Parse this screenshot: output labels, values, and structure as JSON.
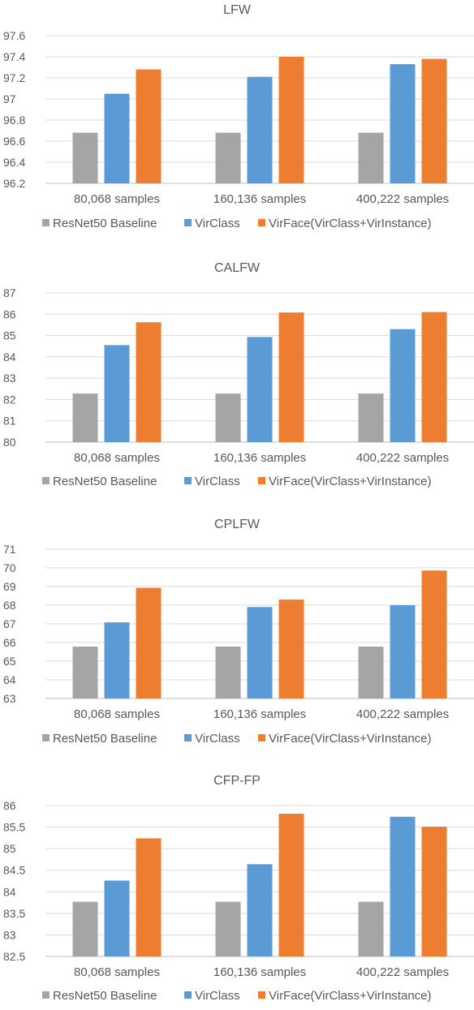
{
  "colors": {
    "baseline": "#a5a5a5",
    "virclass": "#5b9bd5",
    "virface": "#ed7d31",
    "grid": "#d9d9d9",
    "axis": "#bfbfbf",
    "text": "#595959"
  },
  "legend_labels": [
    "ResNet50 Baseline",
    "VirClass",
    "VirFace(VirClass+VirInstance)"
  ],
  "chart_data": [
    {
      "type": "bar",
      "title": "LFW",
      "categories": [
        "80,068 samples",
        "160,136 samples",
        "400,222 samples"
      ],
      "series": [
        {
          "name": "ResNet50 Baseline",
          "values": [
            96.68,
            96.68,
            96.68
          ]
        },
        {
          "name": "VirClass",
          "values": [
            97.05,
            97.21,
            97.33
          ]
        },
        {
          "name": "VirFace(VirClass+VirInstance)",
          "values": [
            97.28,
            97.4,
            97.38
          ]
        }
      ],
      "ylim": [
        96.2,
        97.6
      ],
      "yticks": [
        "96.2",
        "96.4",
        "96.6",
        "96.8",
        "97",
        "97.2",
        "97.4",
        "97.6"
      ],
      "grid": true,
      "legend": "bottom"
    },
    {
      "type": "bar",
      "title": "CALFW",
      "categories": [
        "80,068 samples",
        "160,136 samples",
        "400,222 samples"
      ],
      "series": [
        {
          "name": "ResNet50 Baseline",
          "values": [
            82.28,
            82.28,
            82.28
          ]
        },
        {
          "name": "VirClass",
          "values": [
            84.55,
            84.93,
            85.3
          ]
        },
        {
          "name": "VirFace(VirClass+VirInstance)",
          "values": [
            85.62,
            86.08,
            86.1
          ]
        }
      ],
      "ylim": [
        80,
        87
      ],
      "yticks": [
        "80",
        "81",
        "82",
        "83",
        "84",
        "85",
        "86",
        "87"
      ],
      "grid": true,
      "legend": "bottom"
    },
    {
      "type": "bar",
      "title": "CPLFW",
      "categories": [
        "80,068 samples",
        "160,136 samples",
        "400,222 samples"
      ],
      "series": [
        {
          "name": "ResNet50 Baseline",
          "values": [
            65.78,
            65.78,
            65.78
          ]
        },
        {
          "name": "VirClass",
          "values": [
            67.08,
            67.9,
            68.0
          ]
        },
        {
          "name": "VirFace(VirClass+VirInstance)",
          "values": [
            68.93,
            68.3,
            69.86
          ]
        }
      ],
      "ylim": [
        63,
        71
      ],
      "yticks": [
        "63",
        "64",
        "65",
        "66",
        "67",
        "68",
        "69",
        "70",
        "71"
      ],
      "grid": true,
      "legend": "bottom"
    },
    {
      "type": "bar",
      "title": "CFP-FP",
      "categories": [
        "80,068 samples",
        "160,136 samples",
        "400,222 samples"
      ],
      "series": [
        {
          "name": "ResNet50 Baseline",
          "values": [
            83.77,
            83.77,
            83.77
          ]
        },
        {
          "name": "VirClass",
          "values": [
            84.26,
            84.64,
            85.74
          ]
        },
        {
          "name": "VirFace(VirClass+VirInstance)",
          "values": [
            85.24,
            85.81,
            85.51
          ]
        }
      ],
      "ylim": [
        82.5,
        86
      ],
      "yticks": [
        "82.5",
        "83",
        "83.5",
        "84",
        "84.5",
        "85",
        "85.5",
        "86"
      ],
      "grid": true,
      "legend": "bottom"
    }
  ]
}
